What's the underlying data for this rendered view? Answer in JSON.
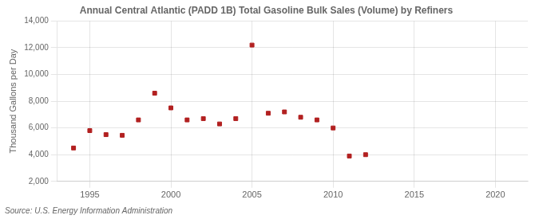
{
  "chart_data": {
    "type": "scatter",
    "title": "Annual Central Atlantic (PADD 1B) Total Gasoline Bulk Sales (Volume) by Refiners",
    "ylabel": "Thousand Gallons per Day",
    "annotation": "Source: U.S. Energy Information Administration",
    "x": [
      1994,
      1995,
      1996,
      1997,
      1998,
      1999,
      2000,
      2001,
      2002,
      2003,
      2004,
      2005,
      2006,
      2007,
      2008,
      2009,
      2010,
      2011,
      2012
    ],
    "values": [
      4500,
      5800,
      5500,
      5450,
      6600,
      8600,
      7500,
      6600,
      6700,
      6300,
      6700,
      12200,
      7100,
      7200,
      6800,
      6600,
      6000,
      3900,
      4000
    ],
    "color": "#b22020",
    "marker": "square",
    "xlim": [
      1993,
      2022
    ],
    "xticks": [
      1995,
      2000,
      2005,
      2010,
      2015,
      2020
    ],
    "ylim": [
      2000,
      14000
    ],
    "yticks": [
      {
        "value": 2000,
        "label": "2,000"
      },
      {
        "value": 4000,
        "label": "4,000"
      },
      {
        "value": 6000,
        "label": "6,000"
      },
      {
        "value": 8000,
        "label": "8,000"
      },
      {
        "value": 10000,
        "label": "10,000"
      },
      {
        "value": 12000,
        "label": "12,000"
      },
      {
        "value": 14000,
        "label": "14,000"
      }
    ],
    "grid": true
  }
}
